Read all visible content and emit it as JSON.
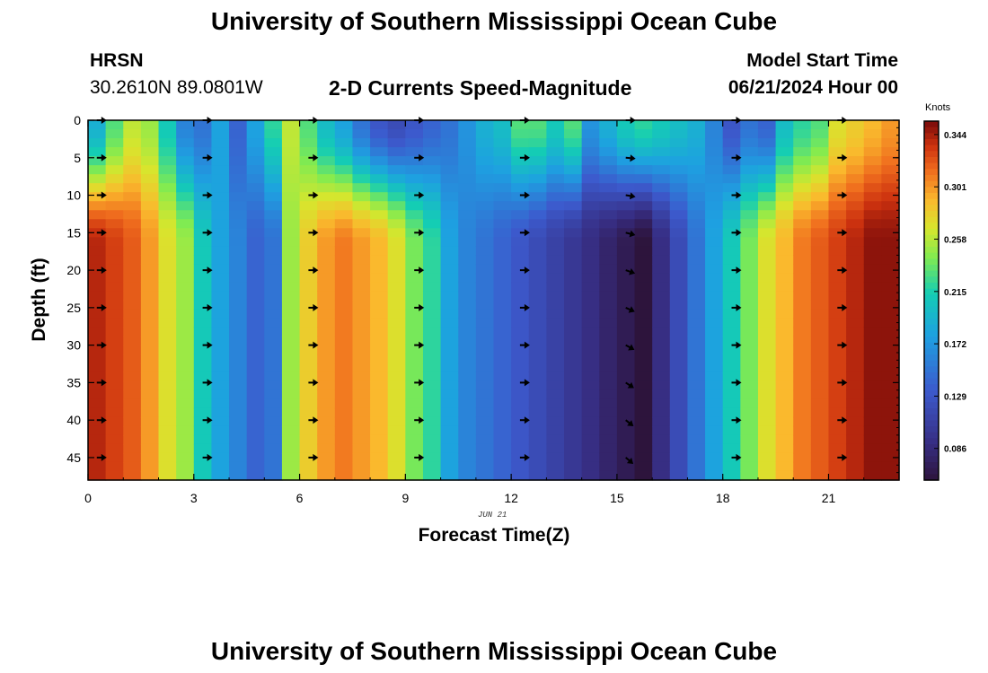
{
  "page": {
    "title": "University of Southern Mississippi Ocean Cube",
    "station": "HRSN",
    "coords": "30.2610N  89.0801W",
    "plot_title": "2-D Currents Speed-Magnitude",
    "model_label": "Model Start Time",
    "model_time": "06/21/2024 Hour 00",
    "date_tag": "JUN 21",
    "footer_title": "University of Southern Mississippi Ocean Cube"
  },
  "chart_data": {
    "type": "heatmap",
    "title": "2-D Currents Speed-Magnitude",
    "xlabel": "Forecast Time(Z)",
    "ylabel": "Depth (ft)",
    "xlim": [
      0,
      23
    ],
    "ylim": [
      0,
      48
    ],
    "y_inverted": true,
    "xticks": [
      0,
      3,
      6,
      9,
      12,
      15,
      18,
      21
    ],
    "yticks": [
      0,
      5,
      10,
      15,
      20,
      25,
      30,
      35,
      40,
      45
    ],
    "colorbar": {
      "label": "Knots",
      "min": 0.06,
      "max": 0.355,
      "ticks": [
        "0.344",
        "0.301",
        "0.258",
        "0.215",
        "0.172",
        "0.129",
        "0.086"
      ],
      "tick_values": [
        0.344,
        0.301,
        0.258,
        0.215,
        0.172,
        0.129,
        0.086
      ]
    },
    "surface_speed_by_hour": [
      0.19,
      0.23,
      0.26,
      0.25,
      0.21,
      0.16,
      0.15,
      0.18,
      0.14,
      0.18,
      0.22,
      0.26,
      0.23,
      0.2,
      0.18,
      0.15,
      0.13,
      0.12,
      0.13,
      0.14,
      0.15,
      0.17,
      0.19,
      0.2,
      0.23,
      0.23,
      0.21,
      0.23,
      0.17,
      0.19,
      0.21,
      0.22,
      0.21,
      0.2,
      0.19,
      0.16,
      0.13,
      0.15,
      0.14,
      0.2,
      0.22,
      0.23,
      0.27,
      0.28,
      0.29,
      0.3
    ],
    "bottom_speed_by_hour": [
      0.34,
      0.33,
      0.32,
      0.3,
      0.27,
      0.25,
      0.21,
      0.18,
      0.16,
      0.14,
      0.15,
      0.25,
      0.28,
      0.3,
      0.31,
      0.3,
      0.29,
      0.27,
      0.24,
      0.22,
      0.18,
      0.16,
      0.15,
      0.14,
      0.13,
      0.12,
      0.11,
      0.1,
      0.09,
      0.08,
      0.07,
      0.06,
      0.09,
      0.12,
      0.15,
      0.18,
      0.21,
      0.24,
      0.27,
      0.29,
      0.31,
      0.32,
      0.33,
      0.34,
      0.35,
      0.35
    ],
    "arrow_times": [
      0.25,
      3.25,
      6.25,
      9.25,
      12.25,
      15.25,
      18.25,
      21.25
    ],
    "arrow_depths": [
      0,
      5,
      10,
      15,
      20,
      25,
      30,
      35,
      40,
      45
    ]
  }
}
